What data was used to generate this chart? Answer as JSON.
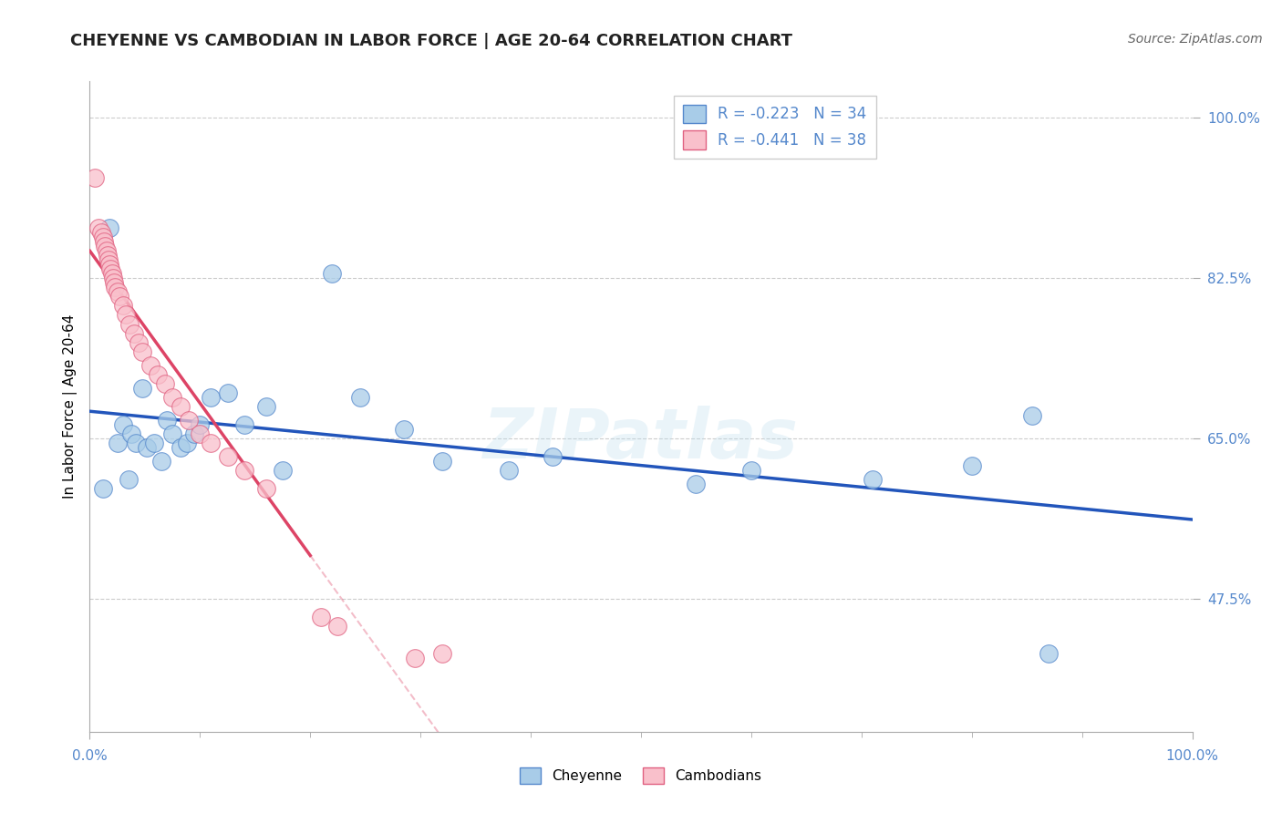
{
  "title": "CHEYENNE VS CAMBODIAN IN LABOR FORCE | AGE 20-64 CORRELATION CHART",
  "source": "Source: ZipAtlas.com",
  "ylabel": "In Labor Force | Age 20-64",
  "xlim": [
    0,
    1
  ],
  "ylim": [
    0.33,
    1.04
  ],
  "yticks": [
    0.475,
    0.65,
    0.825,
    1.0
  ],
  "ytick_labels": [
    "47.5%",
    "65.0%",
    "82.5%",
    "100.0%"
  ],
  "cheyenne_color": "#a8cce8",
  "cambodian_color": "#f9c0cb",
  "cheyenne_edge_color": "#5588cc",
  "cambodian_edge_color": "#e06080",
  "cheyenne_line_color": "#2255bb",
  "cambodian_line_color": "#dd4466",
  "grid_color": "#cccccc",
  "watermark": "ZIPatlas",
  "R_cheyenne": -0.223,
  "N_cheyenne": 34,
  "R_cambodian": -0.441,
  "N_cambodian": 38,
  "cheyenne_x": [
    0.012,
    0.018,
    0.025,
    0.03,
    0.035,
    0.038,
    0.042,
    0.048,
    0.052,
    0.058,
    0.065,
    0.07,
    0.075,
    0.082,
    0.088,
    0.095,
    0.1,
    0.11,
    0.125,
    0.14,
    0.16,
    0.175,
    0.22,
    0.245,
    0.285,
    0.32,
    0.38,
    0.42,
    0.55,
    0.6,
    0.71,
    0.8,
    0.855,
    0.87
  ],
  "cheyenne_y": [
    0.595,
    0.88,
    0.645,
    0.665,
    0.605,
    0.655,
    0.645,
    0.705,
    0.64,
    0.645,
    0.625,
    0.67,
    0.655,
    0.64,
    0.645,
    0.655,
    0.665,
    0.695,
    0.7,
    0.665,
    0.685,
    0.615,
    0.83,
    0.695,
    0.66,
    0.625,
    0.615,
    0.63,
    0.6,
    0.615,
    0.605,
    0.62,
    0.675,
    0.415
  ],
  "cambodian_x": [
    0.005,
    0.008,
    0.01,
    0.012,
    0.013,
    0.014,
    0.015,
    0.016,
    0.017,
    0.018,
    0.019,
    0.02,
    0.021,
    0.022,
    0.023,
    0.025,
    0.027,
    0.03,
    0.033,
    0.036,
    0.04,
    0.044,
    0.048,
    0.055,
    0.062,
    0.068,
    0.075,
    0.082,
    0.09,
    0.1,
    0.11,
    0.125,
    0.14,
    0.16,
    0.21,
    0.225,
    0.295,
    0.32
  ],
  "cambodian_y": [
    0.935,
    0.88,
    0.875,
    0.87,
    0.865,
    0.86,
    0.855,
    0.85,
    0.845,
    0.84,
    0.835,
    0.83,
    0.825,
    0.82,
    0.815,
    0.81,
    0.805,
    0.795,
    0.785,
    0.775,
    0.765,
    0.755,
    0.745,
    0.73,
    0.72,
    0.71,
    0.695,
    0.685,
    0.67,
    0.655,
    0.645,
    0.63,
    0.615,
    0.595,
    0.455,
    0.445,
    0.41,
    0.415
  ],
  "title_fontsize": 13,
  "axis_label_fontsize": 11,
  "tick_fontsize": 11,
  "legend_fontsize": 12,
  "source_fontsize": 10
}
